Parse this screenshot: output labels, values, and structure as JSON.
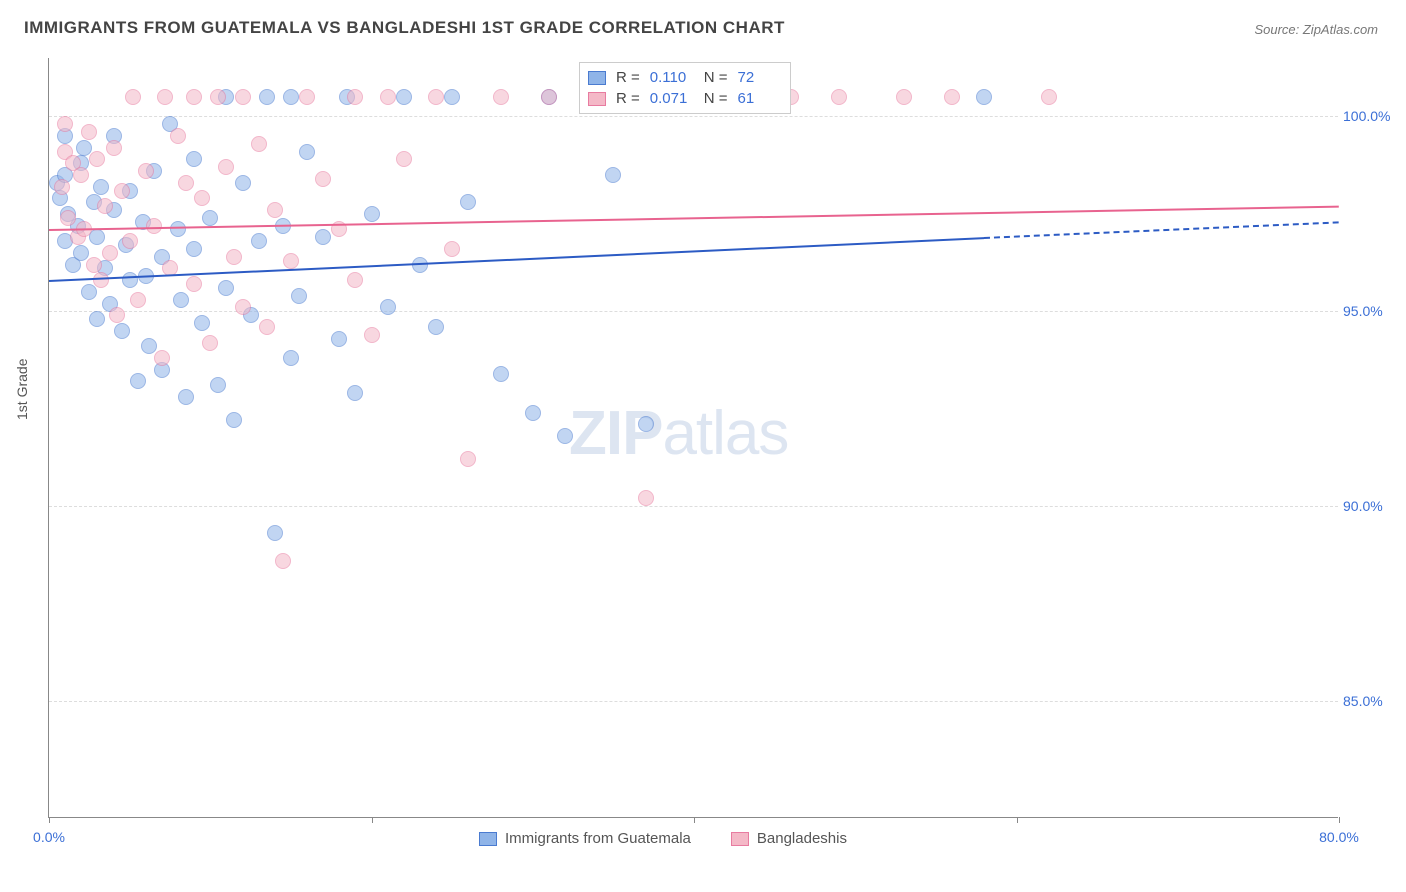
{
  "title": "IMMIGRANTS FROM GUATEMALA VS BANGLADESHI 1ST GRADE CORRELATION CHART",
  "source": "Source: ZipAtlas.com",
  "y_axis_label": "1st Grade",
  "watermark_bold": "ZIP",
  "watermark_light": "atlas",
  "chart": {
    "type": "scatter-with-trend",
    "xlim": [
      0,
      80
    ],
    "ylim": [
      82,
      101.5
    ],
    "x_ticks": [
      0,
      20,
      40,
      60,
      80
    ],
    "x_tick_labels": [
      "0.0%",
      "",
      "",
      "",
      "80.0%"
    ],
    "y_ticks": [
      85,
      90,
      95,
      100
    ],
    "y_tick_labels": [
      "85.0%",
      "90.0%",
      "95.0%",
      "100.0%"
    ],
    "grid_color": "#dddddd",
    "background_color": "#ffffff",
    "point_radius": 8,
    "point_opacity": 0.55,
    "series": [
      {
        "name": "Immigrants from Guatemala",
        "key": "guatemala",
        "color_fill": "#8fb4e8",
        "color_stroke": "#4a7bd0",
        "trend_color": "#2c5bc4",
        "R": "0.110",
        "N": "72",
        "trend": {
          "x1": 0,
          "y1": 95.8,
          "x2": 58,
          "y2": 96.9,
          "dash_x2": 80,
          "dash_y2": 97.3
        },
        "points": [
          [
            0.5,
            98.3
          ],
          [
            0.7,
            97.9
          ],
          [
            1,
            98.5
          ],
          [
            1,
            96.8
          ],
          [
            1.2,
            97.5
          ],
          [
            1.5,
            96.2
          ],
          [
            1.8,
            97.2
          ],
          [
            2,
            98.8
          ],
          [
            2,
            96.5
          ],
          [
            2.2,
            99.2
          ],
          [
            2.5,
            95.5
          ],
          [
            2.8,
            97.8
          ],
          [
            3,
            96.9
          ],
          [
            3,
            94.8
          ],
          [
            3.2,
            98.2
          ],
          [
            3.5,
            96.1
          ],
          [
            3.8,
            95.2
          ],
          [
            4,
            97.6
          ],
          [
            4,
            99.5
          ],
          [
            4.5,
            94.5
          ],
          [
            4.8,
            96.7
          ],
          [
            5,
            98.1
          ],
          [
            5,
            95.8
          ],
          [
            5.5,
            93.2
          ],
          [
            5.8,
            97.3
          ],
          [
            6,
            95.9
          ],
          [
            6.2,
            94.1
          ],
          [
            6.5,
            98.6
          ],
          [
            7,
            96.4
          ],
          [
            7,
            93.5
          ],
          [
            7.5,
            99.8
          ],
          [
            8,
            97.1
          ],
          [
            8.2,
            95.3
          ],
          [
            8.5,
            92.8
          ],
          [
            9,
            96.6
          ],
          [
            9,
            98.9
          ],
          [
            9.5,
            94.7
          ],
          [
            10,
            97.4
          ],
          [
            10.5,
            93.1
          ],
          [
            11,
            100.5
          ],
          [
            11,
            95.6
          ],
          [
            11.5,
            92.2
          ],
          [
            12,
            98.3
          ],
          [
            12.5,
            94.9
          ],
          [
            13,
            96.8
          ],
          [
            13.5,
            100.5
          ],
          [
            14,
            89.3
          ],
          [
            14.5,
            97.2
          ],
          [
            15,
            93.8
          ],
          [
            15,
            100.5
          ],
          [
            15.5,
            95.4
          ],
          [
            16,
            99.1
          ],
          [
            17,
            96.9
          ],
          [
            18,
            94.3
          ],
          [
            18.5,
            100.5
          ],
          [
            19,
            92.9
          ],
          [
            20,
            97.5
          ],
          [
            21,
            95.1
          ],
          [
            22,
            100.5
          ],
          [
            23,
            96.2
          ],
          [
            24,
            94.6
          ],
          [
            25,
            100.5
          ],
          [
            26,
            97.8
          ],
          [
            28,
            93.4
          ],
          [
            30,
            92.4
          ],
          [
            31,
            100.5
          ],
          [
            32,
            91.8
          ],
          [
            34,
            100.5
          ],
          [
            35,
            98.5
          ],
          [
            37,
            92.1
          ],
          [
            58,
            100.5
          ],
          [
            1,
            99.5
          ]
        ]
      },
      {
        "name": "Bangladeshis",
        "key": "bangladeshi",
        "color_fill": "#f4b8c7",
        "color_stroke": "#e87ba0",
        "trend_color": "#e8638f",
        "R": "0.071",
        "N": "61",
        "trend": {
          "x1": 0,
          "y1": 97.1,
          "x2": 80,
          "y2": 97.7
        },
        "points": [
          [
            0.8,
            98.2
          ],
          [
            1,
            99.1
          ],
          [
            1.2,
            97.4
          ],
          [
            1.5,
            98.8
          ],
          [
            1.8,
            96.9
          ],
          [
            2,
            98.5
          ],
          [
            2.2,
            97.1
          ],
          [
            2.5,
            99.6
          ],
          [
            2.8,
            96.2
          ],
          [
            3,
            98.9
          ],
          [
            3.2,
            95.8
          ],
          [
            3.5,
            97.7
          ],
          [
            3.8,
            96.5
          ],
          [
            4,
            99.2
          ],
          [
            4.2,
            94.9
          ],
          [
            4.5,
            98.1
          ],
          [
            5,
            96.8
          ],
          [
            5.2,
            100.5
          ],
          [
            5.5,
            95.3
          ],
          [
            6,
            98.6
          ],
          [
            6.5,
            97.2
          ],
          [
            7,
            93.8
          ],
          [
            7.2,
            100.5
          ],
          [
            7.5,
            96.1
          ],
          [
            8,
            99.5
          ],
          [
            8.5,
            98.3
          ],
          [
            9,
            95.7
          ],
          [
            9,
            100.5
          ],
          [
            9.5,
            97.9
          ],
          [
            10,
            94.2
          ],
          [
            10.5,
            100.5
          ],
          [
            11,
            98.7
          ],
          [
            11.5,
            96.4
          ],
          [
            12,
            95.1
          ],
          [
            12,
            100.5
          ],
          [
            13,
            99.3
          ],
          [
            13.5,
            94.6
          ],
          [
            14,
            97.6
          ],
          [
            14.5,
            88.6
          ],
          [
            15,
            96.3
          ],
          [
            16,
            100.5
          ],
          [
            17,
            98.4
          ],
          [
            18,
            97.1
          ],
          [
            19,
            95.8
          ],
          [
            19,
            100.5
          ],
          [
            20,
            94.4
          ],
          [
            21,
            100.5
          ],
          [
            22,
            98.9
          ],
          [
            24,
            100.5
          ],
          [
            25,
            96.6
          ],
          [
            26,
            91.2
          ],
          [
            28,
            100.5
          ],
          [
            31,
            100.5
          ],
          [
            37,
            90.2
          ],
          [
            42,
            100.5
          ],
          [
            46,
            100.5
          ],
          [
            49,
            100.5
          ],
          [
            53,
            100.5
          ],
          [
            56,
            100.5
          ],
          [
            62,
            100.5
          ],
          [
            1,
            99.8
          ]
        ]
      }
    ]
  },
  "stats_labels": {
    "R": "R =",
    "N": "N ="
  },
  "bottom_legend": [
    {
      "label": "Immigrants from Guatemala",
      "fill": "#8fb4e8",
      "stroke": "#4a7bd0"
    },
    {
      "label": "Bangladeshis",
      "fill": "#f4b8c7",
      "stroke": "#e87ba0"
    }
  ]
}
